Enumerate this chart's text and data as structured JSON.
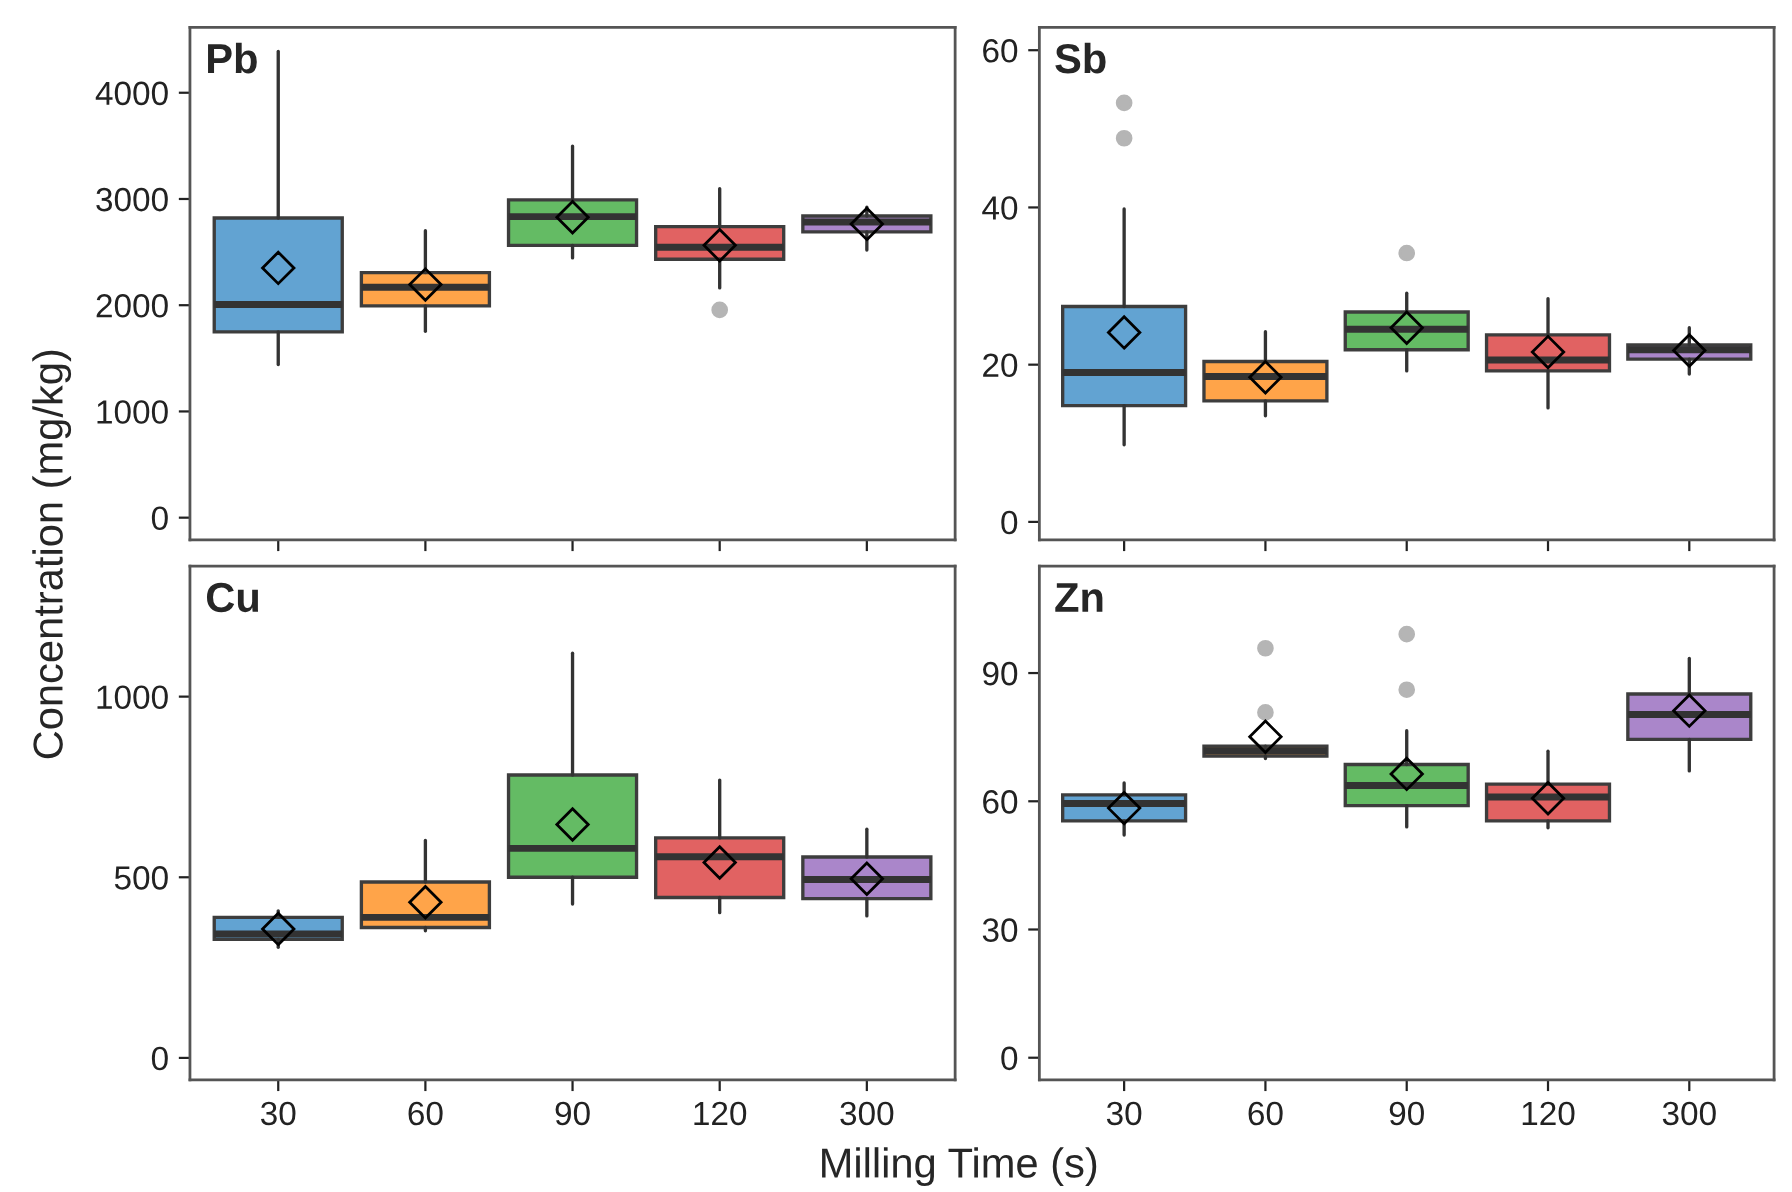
{
  "chart_data": [
    {
      "type": "box",
      "title": "Pb",
      "ylabel": "Concentration (mg/kg)",
      "categories": [
        "30",
        "60",
        "90",
        "120",
        "300"
      ],
      "colors": [
        "#5a9fd0",
        "#ffa040",
        "#5cb85c",
        "#e05a5a",
        "#a680c8"
      ],
      "ylim": [
        -210,
        4615
      ],
      "yticks": [
        0,
        1000,
        2000,
        3000,
        4000
      ],
      "tick_labels": "y",
      "boxes": [
        {
          "low": 1442,
          "q1": 1749,
          "median": 2006,
          "q3": 2821,
          "high": 4389,
          "mean": 2351
        },
        {
          "low": 1755,
          "q1": 1994,
          "median": 2169,
          "q3": 2307,
          "high": 2702,
          "mean": 2194
        },
        {
          "low": 2445,
          "q1": 2564,
          "median": 2834,
          "q3": 2991,
          "high": 3498,
          "mean": 2828
        },
        {
          "low": 2163,
          "q1": 2433,
          "median": 2545,
          "q3": 2740,
          "high": 3097,
          "mean": 2564,
          "outliers": [
            1956
          ]
        },
        {
          "low": 2520,
          "q1": 2690,
          "median": 2784,
          "q3": 2840,
          "high": 2922,
          "mean": 2765
        }
      ]
    },
    {
      "type": "box",
      "title": "Sb",
      "categories": [
        "30",
        "60",
        "90",
        "120",
        "300"
      ],
      "colors": [
        "#5a9fd0",
        "#ffa040",
        "#5cb85c",
        "#e05a5a",
        "#a680c8"
      ],
      "ylim": [
        -2.3,
        62.9
      ],
      "yticks": [
        0,
        20,
        40,
        60
      ],
      "tick_labels": "y",
      "boxes": [
        {
          "low": 9.8,
          "q1": 14.8,
          "median": 19.0,
          "q3": 27.4,
          "high": 39.8,
          "mean": 24.1,
          "outliers": [
            53.3,
            48.8
          ]
        },
        {
          "low": 13.5,
          "q1": 15.4,
          "median": 18.5,
          "q3": 20.4,
          "high": 24.2,
          "mean": 18.4
        },
        {
          "low": 19.2,
          "q1": 21.9,
          "median": 24.5,
          "q3": 26.7,
          "high": 29.1,
          "mean": 24.7,
          "outliers": [
            34.2
          ]
        },
        {
          "low": 14.5,
          "q1": 19.2,
          "median": 20.6,
          "q3": 23.8,
          "high": 28.4,
          "mean": 21.6
        },
        {
          "low": 18.8,
          "q1": 20.7,
          "median": 21.9,
          "q3": 22.5,
          "high": 24.7,
          "mean": 21.8
        }
      ]
    },
    {
      "type": "box",
      "title": "Cu",
      "xlabel": "Milling Time (s)",
      "categories": [
        "30",
        "60",
        "90",
        "120",
        "300"
      ],
      "colors": [
        "#5a9fd0",
        "#ffa040",
        "#5cb85c",
        "#e05a5a",
        "#a680c8"
      ],
      "ylim": [
        -61,
        1361
      ],
      "yticks": [
        0,
        500,
        1000
      ],
      "boxes": [
        {
          "low": 306,
          "q1": 328,
          "median": 343,
          "q3": 389,
          "high": 407,
          "mean": 357
        },
        {
          "low": 352,
          "q1": 361,
          "median": 389,
          "q3": 487,
          "high": 602,
          "mean": 431
        },
        {
          "low": 426,
          "q1": 500,
          "median": 580,
          "q3": 783,
          "high": 1120,
          "mean": 646
        },
        {
          "low": 402,
          "q1": 444,
          "median": 557,
          "q3": 609,
          "high": 769,
          "mean": 541
        },
        {
          "low": 393,
          "q1": 441,
          "median": 494,
          "q3": 556,
          "high": 633,
          "mean": 496
        }
      ]
    },
    {
      "type": "box",
      "title": "Zn",
      "categories": [
        "30",
        "60",
        "90",
        "120",
        "300"
      ],
      "colors": [
        "#5a9fd0",
        "#ffa040",
        "#5cb85c",
        "#e05a5a",
        "#a680c8"
      ],
      "ylim": [
        -5.2,
        115
      ],
      "yticks": [
        0,
        30,
        60,
        90
      ],
      "boxes": [
        {
          "low": 52.1,
          "q1": 55.4,
          "median": 59.5,
          "q3": 61.5,
          "high": 64.3,
          "mean": 58.4
        },
        {
          "low": 70.0,
          "q1": 70.6,
          "median": 71.8,
          "q3": 72.9,
          "high": 72.9,
          "mean": 75.1,
          "outliers": [
            95.8,
            80.8
          ]
        },
        {
          "low": 54.0,
          "q1": 59.0,
          "median": 63.7,
          "q3": 68.6,
          "high": 76.5,
          "mean": 66.4,
          "outliers": [
            99.1,
            86.1
          ]
        },
        {
          "low": 53.8,
          "q1": 55.4,
          "median": 61.0,
          "q3": 64.0,
          "high": 71.7,
          "mean": 60.7
        },
        {
          "low": 67.1,
          "q1": 74.5,
          "median": 80.3,
          "q3": 85.1,
          "high": 93.4,
          "mean": 81.2
        }
      ]
    }
  ]
}
